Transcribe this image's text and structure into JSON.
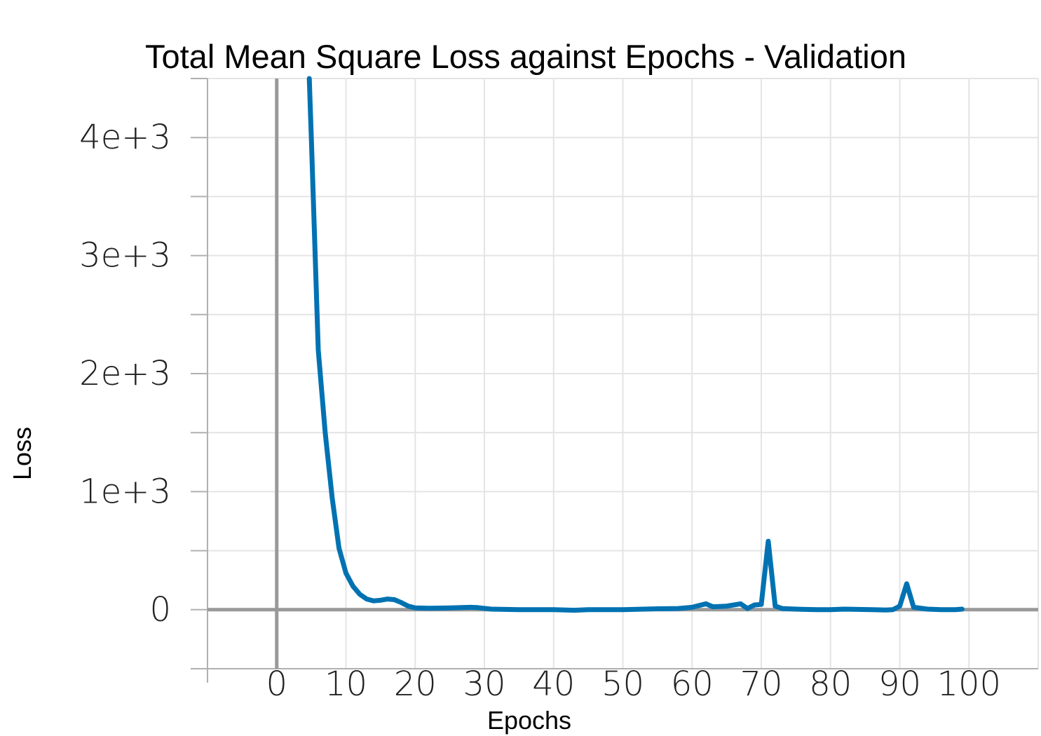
{
  "chart_data": {
    "type": "line",
    "title": "Total Mean Square Loss against Epochs - Validation",
    "xlabel": "Epochs",
    "ylabel": "Loss",
    "xlim": [
      -10,
      110
    ],
    "ylim": [
      -500,
      4500
    ],
    "x_ticks": [
      0,
      10,
      20,
      30,
      40,
      50,
      60,
      70,
      80,
      90,
      100
    ],
    "x_tick_labels": [
      "0",
      "10",
      "20",
      "30",
      "40",
      "50",
      "60",
      "70",
      "80",
      "90",
      "100"
    ],
    "y_ticks": [
      0,
      1000,
      2000,
      3000,
      4000
    ],
    "y_tick_labels": [
      "0",
      "1e+3",
      "2e+3",
      "3e+3",
      "4e+3"
    ],
    "grid": true,
    "colors": {
      "series": "#0072B2",
      "zero_lines": "#999999",
      "grid": "#e4e4e4"
    },
    "series": [
      {
        "x": [
          4.7,
          5,
          6,
          7,
          8,
          9,
          10,
          11,
          12,
          13,
          14,
          15,
          16,
          17,
          18,
          19,
          20,
          22,
          25,
          28,
          29,
          31,
          35,
          40,
          43,
          45,
          50,
          55,
          58,
          60,
          61,
          62,
          63,
          65,
          66,
          67,
          68,
          69,
          70,
          71,
          72,
          73,
          75,
          78,
          80,
          82,
          86,
          88,
          89,
          90,
          91,
          92,
          94,
          96,
          98,
          99
        ],
        "y": [
          4500,
          4000,
          2200,
          1500,
          950,
          520,
          310,
          200,
          130,
          90,
          75,
          80,
          90,
          85,
          60,
          30,
          15,
          12,
          15,
          20,
          18,
          5,
          0,
          0,
          -5,
          0,
          0,
          8,
          10,
          20,
          35,
          50,
          25,
          30,
          40,
          50,
          10,
          40,
          45,
          580,
          30,
          10,
          5,
          0,
          0,
          5,
          0,
          -3,
          0,
          30,
          220,
          20,
          5,
          0,
          0,
          5
        ]
      }
    ]
  }
}
